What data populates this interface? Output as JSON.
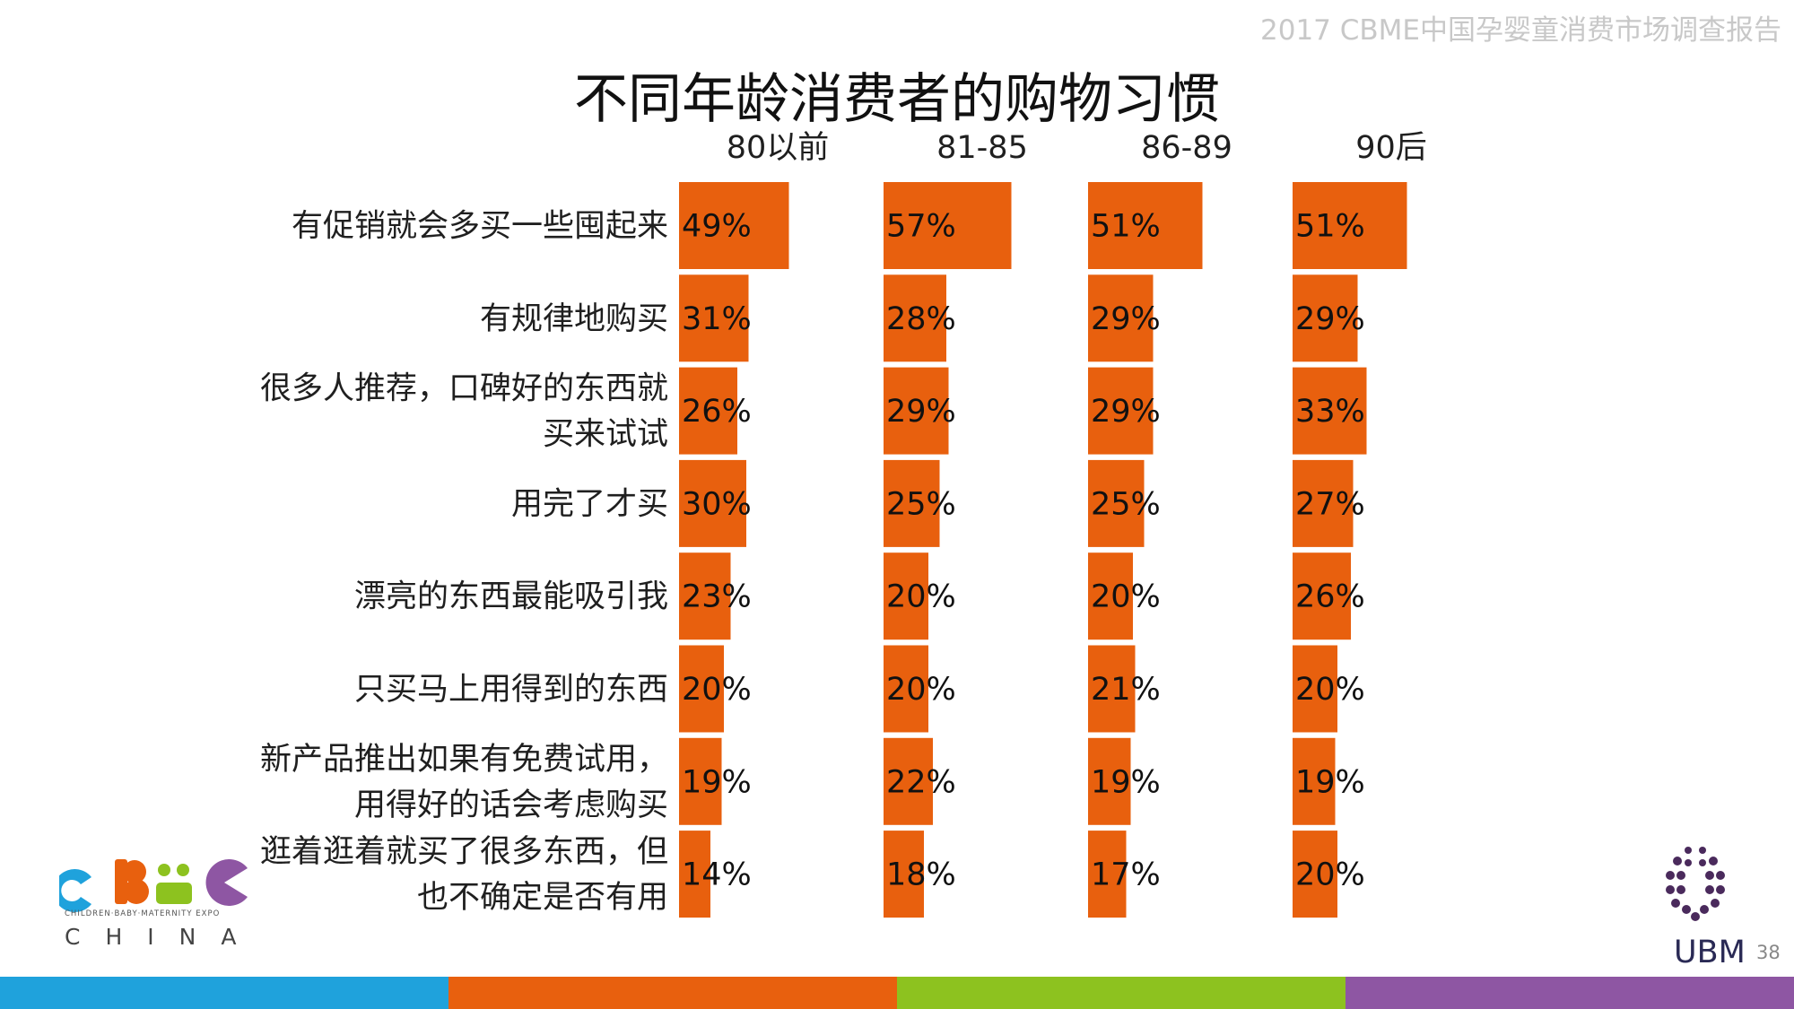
{
  "header": {
    "report_title": "2017 CBME中国孕婴童消费市场调查报告"
  },
  "chart_data": {
    "type": "bar",
    "title": "不同年龄消费者的购物习惯",
    "orientation": "horizontal",
    "categories": [
      [
        "有促销就会多买一些囤起来"
      ],
      [
        "有规律地购买"
      ],
      [
        "很多人推荐，口碑好的东西就",
        "买来试试"
      ],
      [
        "用完了才买"
      ],
      [
        "漂亮的东西最能吸引我"
      ],
      [
        "只买马上用得到的东西"
      ],
      [
        "新产品推出如果有免费试用，",
        "用得好的话会考虑购买"
      ],
      [
        "逛着逛着就买了很多东西，但",
        "也不确定是否有用"
      ]
    ],
    "series": [
      {
        "name": "80以前",
        "values": [
          49,
          31,
          26,
          30,
          23,
          20,
          19,
          14
        ],
        "labels": [
          "49%",
          "31%",
          "26%",
          "30%",
          "23%",
          "20%",
          "19%",
          "14%"
        ]
      },
      {
        "name": "81-85",
        "values": [
          57,
          28,
          29,
          25,
          20,
          20,
          22,
          18
        ],
        "labels": [
          "57%",
          "28%",
          "29%",
          "25%",
          "20%",
          "20%",
          "22%",
          "18%"
        ]
      },
      {
        "name": "86-89",
        "values": [
          51,
          29,
          29,
          25,
          20,
          21,
          19,
          17
        ],
        "labels": [
          "51%",
          "29%",
          "29%",
          "25%",
          "20%",
          "21%",
          "19%",
          "17%"
        ]
      },
      {
        "name": "90后",
        "values": [
          51,
          29,
          33,
          27,
          26,
          20,
          19,
          20
        ],
        "labels": [
          "51%",
          "29%",
          "33%",
          "27%",
          "26%",
          "20%",
          "19%",
          "20%"
        ]
      }
    ],
    "unit": "%",
    "bar_color": "#E8600E",
    "legend": "none",
    "grid": false
  },
  "logos": {
    "left": {
      "name": "cbme-logo",
      "text": "CBME",
      "subtitle": "CHILDREN·BABY·MATERNITY EXPO",
      "region": "CHINA"
    },
    "right": {
      "name": "ubm-logo",
      "text": "UBM"
    }
  },
  "page_number": "38",
  "footer_colors": [
    "#1FA2DC",
    "#E8600E",
    "#8DC21F",
    "#8E56A3"
  ]
}
